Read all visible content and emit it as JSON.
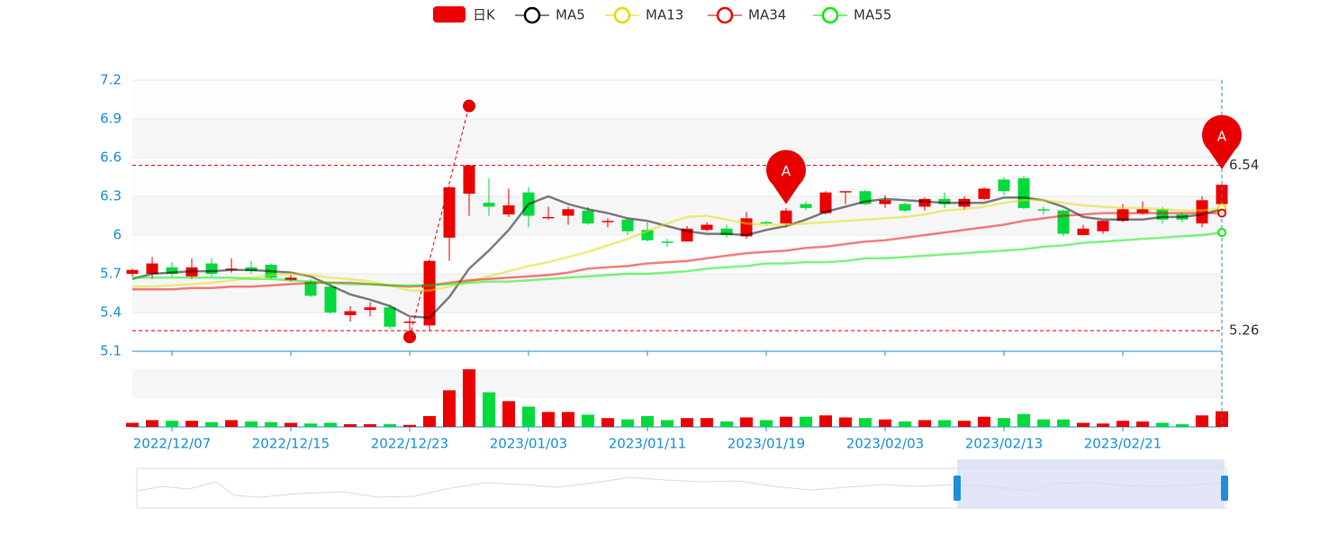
{
  "chart_data": {
    "type": "candlestick",
    "categories": [
      null,
      null,
      "2022/12/07",
      null,
      null,
      null,
      null,
      null,
      "2022/12/15",
      null,
      null,
      null,
      null,
      null,
      "2022/12/23",
      null,
      null,
      null,
      null,
      null,
      "2023/01/03",
      null,
      null,
      null,
      null,
      null,
      "2023/01/11",
      null,
      null,
      null,
      null,
      null,
      "2023/01/19",
      null,
      null,
      null,
      null,
      null,
      "2023/02/03",
      null,
      null,
      null,
      null,
      null,
      "2023/02/13",
      null,
      null,
      null,
      null,
      null,
      "2023/02/21",
      null,
      null,
      null,
      null,
      null
    ],
    "ylim": [
      5.1,
      7.2
    ],
    "yticks": [
      5.1,
      5.4,
      5.7,
      6,
      6.3,
      6.6,
      6.9,
      7.2
    ],
    "split_area": true,
    "up_color": "#ec0000",
    "down_color": "#00da3c",
    "series": [
      {
        "name": "日K",
        "values": [
          [
            5.7,
            5.73,
            5.68,
            5.74
          ],
          [
            5.7,
            5.78,
            5.66,
            5.83
          ],
          [
            5.75,
            5.7,
            5.68,
            5.79
          ],
          [
            5.68,
            5.75,
            5.66,
            5.82
          ],
          [
            5.78,
            5.7,
            5.68,
            5.82
          ],
          [
            5.73,
            5.74,
            5.71,
            5.82
          ],
          [
            5.75,
            5.72,
            5.7,
            5.8
          ],
          [
            5.77,
            5.67,
            5.66,
            5.78
          ],
          [
            5.65,
            5.67,
            5.64,
            5.69
          ],
          [
            5.64,
            5.53,
            5.52,
            5.66
          ],
          [
            5.6,
            5.4,
            5.39,
            5.61
          ],
          [
            5.38,
            5.41,
            5.33,
            5.45
          ],
          [
            5.42,
            5.44,
            5.37,
            5.48
          ],
          [
            5.44,
            5.29,
            5.27,
            5.46
          ],
          [
            5.32,
            5.33,
            5.26,
            5.36
          ],
          [
            5.3,
            5.8,
            5.26,
            5.81
          ],
          [
            5.98,
            6.37,
            5.8,
            6.38
          ],
          [
            6.32,
            6.54,
            6.15,
            6.54
          ],
          [
            6.25,
            6.22,
            6.15,
            6.44
          ],
          [
            6.16,
            6.23,
            6.14,
            6.36
          ],
          [
            6.33,
            6.15,
            6.06,
            6.37
          ],
          [
            6.13,
            6.14,
            6.12,
            6.22
          ],
          [
            6.15,
            6.2,
            6.08,
            6.22
          ],
          [
            6.19,
            6.09,
            6.08,
            6.22
          ],
          [
            6.1,
            6.11,
            6.06,
            6.13
          ],
          [
            6.12,
            6.03,
            6.0,
            6.13
          ],
          [
            6.04,
            5.96,
            5.95,
            6.1
          ],
          [
            5.95,
            5.94,
            5.91,
            5.97
          ],
          [
            5.95,
            6.05,
            5.95,
            6.07
          ],
          [
            6.04,
            6.08,
            6.03,
            6.1
          ],
          [
            6.05,
            6.0,
            5.98,
            6.08
          ],
          [
            5.99,
            6.13,
            5.97,
            6.18
          ],
          [
            6.1,
            6.09,
            6.08,
            6.11
          ],
          [
            6.09,
            6.19,
            6.06,
            6.21
          ],
          [
            6.24,
            6.21,
            6.19,
            6.26
          ],
          [
            6.17,
            6.33,
            6.16,
            6.34
          ],
          [
            6.33,
            6.34,
            6.24,
            6.34
          ],
          [
            6.34,
            6.24,
            6.23,
            6.35
          ],
          [
            6.24,
            6.27,
            6.21,
            6.31
          ],
          [
            6.24,
            6.19,
            6.18,
            6.25
          ],
          [
            6.22,
            6.28,
            6.19,
            6.29
          ],
          [
            6.28,
            6.24,
            6.21,
            6.33
          ],
          [
            6.22,
            6.28,
            6.2,
            6.3
          ],
          [
            6.28,
            6.36,
            6.27,
            6.37
          ],
          [
            6.43,
            6.34,
            6.31,
            6.45
          ],
          [
            6.44,
            6.21,
            6.2,
            6.46
          ],
          [
            6.2,
            6.19,
            6.16,
            6.22
          ],
          [
            6.19,
            6.01,
            5.99,
            6.2
          ],
          [
            6.0,
            6.05,
            6.0,
            6.08
          ],
          [
            6.03,
            6.11,
            6.01,
            6.11
          ],
          [
            6.11,
            6.2,
            6.1,
            6.24
          ],
          [
            6.17,
            6.2,
            6.16,
            6.26
          ],
          [
            6.2,
            6.12,
            6.09,
            6.22
          ],
          [
            6.16,
            6.12,
            6.1,
            6.18
          ],
          [
            6.09,
            6.27,
            6.06,
            6.3
          ],
          [
            6.24,
            6.39,
            6.2,
            6.4
          ]
        ]
      },
      {
        "name": "MA5",
        "color": "#000000",
        "values": [
          5.66,
          5.7,
          5.71,
          5.72,
          5.72,
          5.73,
          5.73,
          5.72,
          5.71,
          5.68,
          5.61,
          5.54,
          5.5,
          5.45,
          5.37,
          5.36,
          5.52,
          5.74,
          5.88,
          6.04,
          6.24,
          6.3,
          6.24,
          6.2,
          6.17,
          6.13,
          6.11,
          6.07,
          6.03,
          6.01,
          6.01,
          6.0,
          6.04,
          6.07,
          6.12,
          6.18,
          6.22,
          6.26,
          6.28,
          6.27,
          6.26,
          6.25,
          6.25,
          6.25,
          6.29,
          6.29,
          6.27,
          6.22,
          6.14,
          6.12,
          6.12,
          6.12,
          6.14,
          6.14,
          6.16,
          6.2
        ]
      },
      {
        "name": "MA13",
        "color": "#dddd00",
        "values": [
          5.6,
          5.6,
          5.61,
          5.62,
          5.63,
          5.65,
          5.67,
          5.69,
          5.7,
          5.69,
          5.67,
          5.66,
          5.64,
          5.61,
          5.57,
          5.57,
          5.6,
          5.64,
          5.68,
          5.72,
          5.76,
          5.79,
          5.83,
          5.87,
          5.92,
          5.97,
          6.03,
          6.09,
          6.14,
          6.15,
          6.12,
          6.09,
          6.08,
          6.08,
          6.09,
          6.1,
          6.11,
          6.12,
          6.13,
          6.14,
          6.16,
          6.19,
          6.2,
          6.22,
          6.25,
          6.27,
          6.27,
          6.25,
          6.23,
          6.22,
          6.21,
          6.21,
          6.2,
          6.19,
          6.19,
          6.21
        ]
      },
      {
        "name": "MA34",
        "color": "#ee0000",
        "values": [
          5.58,
          5.58,
          5.58,
          5.59,
          5.59,
          5.6,
          5.6,
          5.61,
          5.62,
          5.63,
          5.63,
          5.63,
          5.62,
          5.61,
          5.6,
          5.61,
          5.63,
          5.65,
          5.66,
          5.67,
          5.68,
          5.69,
          5.71,
          5.74,
          5.75,
          5.76,
          5.78,
          5.79,
          5.8,
          5.82,
          5.84,
          5.86,
          5.87,
          5.88,
          5.9,
          5.91,
          5.93,
          5.95,
          5.96,
          5.98,
          6.0,
          6.02,
          6.04,
          6.06,
          6.08,
          6.11,
          6.13,
          6.15,
          6.16,
          6.17,
          6.17,
          6.17,
          6.17,
          6.17,
          6.17,
          6.17
        ]
      },
      {
        "name": "MA55",
        "color": "#00ee00",
        "values": [
          5.67,
          5.67,
          5.67,
          5.67,
          5.67,
          5.67,
          5.66,
          5.66,
          5.65,
          5.64,
          5.63,
          5.62,
          5.62,
          5.61,
          5.61,
          5.61,
          5.62,
          5.63,
          5.64,
          5.64,
          5.65,
          5.66,
          5.67,
          5.68,
          5.69,
          5.7,
          5.7,
          5.71,
          5.72,
          5.74,
          5.75,
          5.76,
          5.78,
          5.78,
          5.79,
          5.79,
          5.8,
          5.82,
          5.82,
          5.83,
          5.84,
          5.85,
          5.86,
          5.87,
          5.88,
          5.89,
          5.91,
          5.92,
          5.94,
          5.95,
          5.96,
          5.97,
          5.98,
          5.99,
          6.0,
          6.02
        ]
      }
    ],
    "volume": {
      "ylim": [
        0,
        85
      ],
      "values": [
        6,
        10,
        9,
        9,
        7,
        10,
        8,
        7,
        6,
        5,
        6,
        4,
        4,
        4,
        3,
        16,
        54,
        85,
        51,
        38,
        30,
        22,
        22,
        18,
        13,
        11,
        16,
        10,
        13,
        13,
        8,
        14,
        10,
        15,
        15,
        17,
        14,
        13,
        11,
        8,
        10,
        10,
        9,
        15,
        13,
        19,
        11,
        11,
        6,
        5,
        9,
        8,
        6,
        4,
        17,
        23
      ]
    },
    "mark_lines": [
      6.54,
      5.26
    ],
    "mark_points": [
      {
        "x": 14,
        "value": 5.21
      },
      {
        "x": 17,
        "value": 7.0
      }
    ],
    "pins": [
      {
        "x": 33,
        "value": 6.24,
        "label": "A"
      },
      {
        "x": 55,
        "value": 6.51,
        "label": "A"
      }
    ],
    "cursor_x": 55
  }
}
